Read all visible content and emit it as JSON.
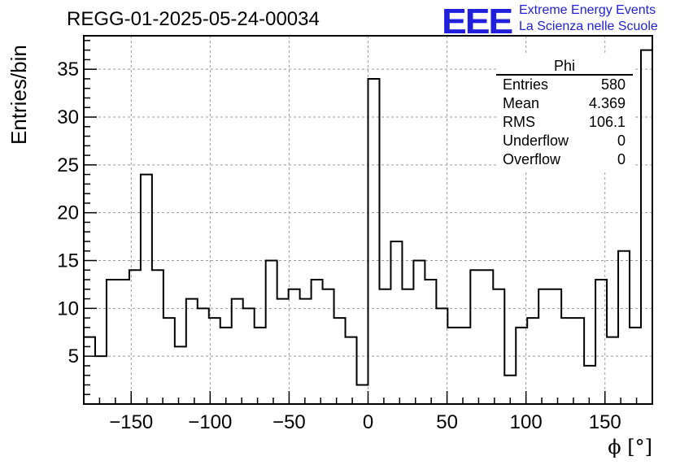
{
  "header": {
    "title": "REGG-01-2025-05-24-00034",
    "logo_text": "EEE",
    "logo_line1": "Extreme Energy Events",
    "logo_line2": "La Scienza nelle Scuole",
    "logo_color": "#1f1fdc"
  },
  "stats": {
    "name": "Phi",
    "rows": [
      {
        "label": "Entries",
        "value": "580"
      },
      {
        "label": "Mean",
        "value": "4.369"
      },
      {
        "label": "RMS",
        "value": "106.1"
      },
      {
        "label": "Underflow",
        "value": "0"
      },
      {
        "label": "Overflow",
        "value": "0"
      }
    ]
  },
  "chart_data": {
    "type": "bar",
    "histogram": true,
    "xlabel": "ϕ [°]",
    "ylabel": "Entries/bin",
    "xlim": [
      -180,
      180
    ],
    "ylim": [
      0,
      38.5
    ],
    "bin_width": 7.2,
    "xticks": [
      -150,
      -100,
      -50,
      0,
      50,
      100,
      150
    ],
    "yticks": [
      5,
      10,
      15,
      20,
      25,
      30,
      35
    ],
    "xtick_labels": [
      "−150",
      "−100",
      "−50",
      "0",
      "50",
      "100",
      "150"
    ],
    "ytick_labels": [
      "5",
      "10",
      "15",
      "20",
      "25",
      "30",
      "35"
    ],
    "grid": true,
    "values": [
      7,
      5,
      13,
      13,
      14,
      24,
      14,
      9,
      6,
      11,
      10,
      9,
      8,
      11,
      10,
      8,
      15,
      11,
      12,
      11,
      13,
      12,
      9,
      7,
      2,
      34,
      12,
      17,
      12,
      15,
      13,
      10,
      8,
      8,
      14,
      14,
      12,
      3,
      8,
      9,
      12,
      12,
      9,
      9,
      4,
      13,
      7,
      16,
      8,
      37
    ]
  }
}
